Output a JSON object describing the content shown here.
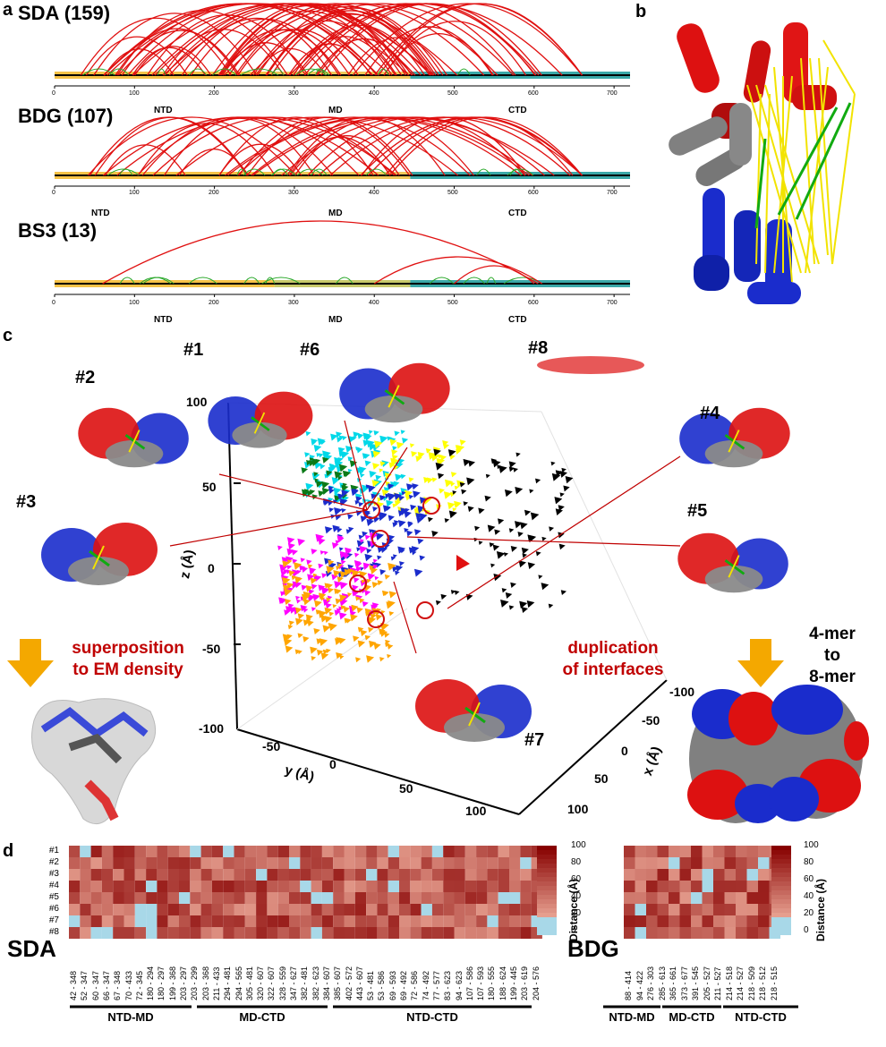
{
  "panel_a": {
    "letter": "a",
    "tracks": [
      {
        "title": "SDA (159)"
      },
      {
        "title": "BDG (107)"
      },
      {
        "title": "BS3 (13)"
      }
    ],
    "ticks": [
      "0",
      "100",
      "200",
      "300",
      "400",
      "500",
      "600",
      "700"
    ],
    "regions": [
      "NTD",
      "MD",
      "CTD"
    ]
  },
  "panel_b": {
    "letter": "b"
  },
  "panel_c": {
    "letter": "c",
    "snapshots": [
      "#1",
      "#2",
      "#3",
      "#4",
      "#5",
      "#6",
      "#7",
      "#8"
    ],
    "z_label": "z (Å)",
    "y_label": "y (Å)",
    "x_label": "x (Å)",
    "z_ticks": [
      "100",
      "50",
      "0",
      "-50",
      "-100"
    ],
    "y_ticks": [
      "-50",
      "0",
      "50",
      "100"
    ],
    "x_ticks": [
      "-100",
      "-50",
      "0",
      "50",
      "100"
    ],
    "note_left": [
      "superposition",
      "to EM density"
    ],
    "note_mid": [
      "duplication",
      "of interfaces"
    ],
    "note_right": [
      "4-mer",
      "to",
      "8-mer"
    ],
    "colors": {
      "red": "#dd1111",
      "blue": "#1a2ccc",
      "gray": "#808080",
      "yellow": "#ffff00",
      "green": "#00aa00",
      "cyan": "#00d8e8",
      "magenta": "#ff00ff",
      "orange": "#ffa500"
    }
  },
  "panel_d": {
    "letter": "d",
    "rows": [
      "#1",
      "#2",
      "#3",
      "#4",
      "#5",
      "#6",
      "#7",
      "#8"
    ],
    "sda": {
      "label": "SDA",
      "columns": [
        "42 - 348",
        "52 - 347",
        "60 - 347",
        "66 - 347",
        "67 - 348",
        "70 - 433",
        "72 - 345",
        "180 - 294",
        "180 - 297",
        "199 - 368",
        "203 - 297",
        "203 - 299",
        "203 - 368",
        "211 - 433",
        "294 - 481",
        "294 - 565",
        "305 - 481",
        "320 - 607",
        "322 - 607",
        "328 - 559",
        "347 - 627",
        "382 - 481",
        "382 - 623",
        "384 - 607",
        "385 - 607",
        "402 - 572",
        "443 - 607",
        "53 - 481",
        "53 - 586",
        "69 - 593",
        "69 - 492",
        "72 - 586",
        "74 - 492",
        "77 - 577",
        "83 - 623",
        "94 - 623",
        "107 - 586",
        "107 - 593",
        "180 - 555",
        "188 - 624",
        "199 - 445",
        "203 - 619",
        "204 - 576"
      ],
      "groups": [
        "NTD-MD",
        "MD-CTD",
        "NTD-CTD"
      ]
    },
    "bdg": {
      "label": "BDG",
      "columns": [
        "88 - 414",
        "94 - 422",
        "276 - 303",
        "285 - 613",
        "365 - 661",
        "373 - 677",
        "391 - 545",
        "205 - 527",
        "211 - 527",
        "214 - 518",
        "214 - 527",
        "218 - 509",
        "218 - 512",
        "218 - 515"
      ],
      "groups": [
        "NTD-MD",
        "MD-CTD",
        "NTD-CTD"
      ]
    },
    "colorbar_ticks": [
      "100",
      "80",
      "60",
      "40",
      "20",
      "0"
    ],
    "colorbar_label": "Distance (Å)"
  }
}
